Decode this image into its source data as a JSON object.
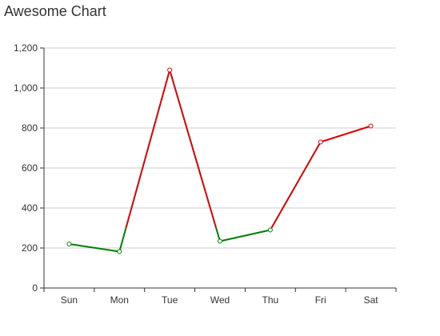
{
  "chart_data": {
    "type": "line",
    "title": "Awesome Chart",
    "xlabel": "",
    "ylabel": "",
    "categories": [
      "Sun",
      "Mon",
      "Tue",
      "Wed",
      "Thu",
      "Fri",
      "Sat"
    ],
    "series": [
      {
        "values": [
          220,
          182,
          1090,
          234,
          290,
          730,
          810
        ]
      }
    ],
    "ylim": [
      0,
      1200
    ],
    "yticks": [
      0,
      200,
      400,
      600,
      800,
      1000,
      1200
    ],
    "ytick_labels": [
      "0",
      "200",
      "400",
      "600",
      "800",
      "1,000",
      "1,200"
    ],
    "grid": true,
    "legend": "none",
    "colors": {
      "rising": "#e00000",
      "falling": "#008000",
      "grid": "#cccccc",
      "axis": "#333333"
    },
    "segment_rule": "segments crossing upward through 300 switch from green to red; segments crossing downward through 300 switch from red to green"
  }
}
